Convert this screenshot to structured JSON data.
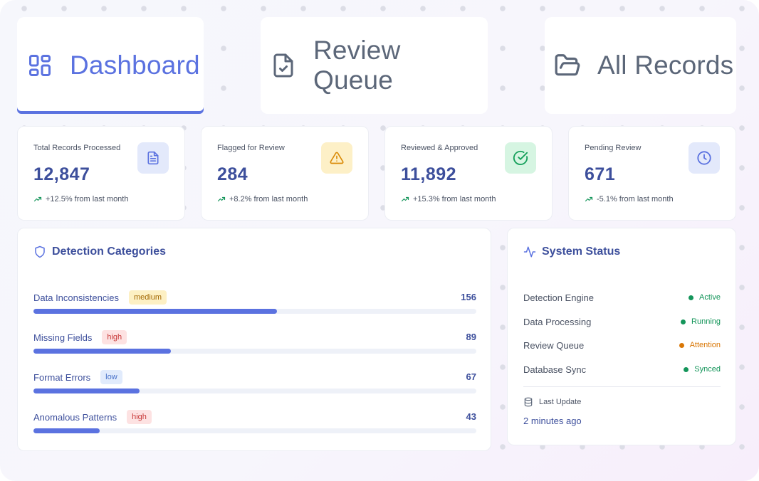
{
  "tabs": [
    {
      "label": "Dashboard",
      "icon": "grid-icon",
      "active": true
    },
    {
      "label": "Review Queue",
      "icon": "file-check-icon",
      "active": false
    },
    {
      "label": "All Records",
      "icon": "folder-open-icon",
      "active": false
    }
  ],
  "stats": [
    {
      "label": "Total Records Processed",
      "value": "12,847",
      "change": "+12.5% from last month",
      "icon": "document-icon",
      "color": "#5b72e0",
      "bg": "#e3e9fb"
    },
    {
      "label": "Flagged for Review",
      "value": "284",
      "change": "+8.2% from last month",
      "icon": "warning-icon",
      "color": "#d98a06",
      "bg": "#fdf0c7"
    },
    {
      "label": "Reviewed & Approved",
      "value": "11,892",
      "change": "+15.3% from last month",
      "icon": "check-circle-icon",
      "color": "#14a05a",
      "bg": "#d6f5e2"
    },
    {
      "label": "Pending Review",
      "value": "671",
      "change": "-5.1% from last month",
      "icon": "clock-icon",
      "color": "#5b72e0",
      "bg": "#e3e9fb"
    }
  ],
  "detection": {
    "title": "Detection Categories",
    "icon": "shield-icon",
    "categories": [
      {
        "name": "Data Inconsistencies",
        "severity": "medium",
        "count": "156",
        "fill": 0.55
      },
      {
        "name": "Missing Fields",
        "severity": "high",
        "count": "89",
        "fill": 0.31
      },
      {
        "name": "Format Errors",
        "severity": "low",
        "count": "67",
        "fill": 0.24
      },
      {
        "name": "Anomalous Patterns",
        "severity": "high",
        "count": "43",
        "fill": 0.15
      }
    ],
    "severity_colors": {
      "medium": {
        "bg": "#fdf0c4",
        "fg": "#a46a06"
      },
      "high": {
        "bg": "#fde2e2",
        "fg": "#c83a3a"
      },
      "low": {
        "bg": "#e1ebfc",
        "fg": "#4770c9"
      }
    }
  },
  "system": {
    "title": "System Status",
    "icon": "activity-icon",
    "items": [
      {
        "name": "Detection Engine",
        "status": "Active",
        "color": "#14955a"
      },
      {
        "name": "Data Processing",
        "status": "Running",
        "color": "#14955a"
      },
      {
        "name": "Review Queue",
        "status": "Attention",
        "color": "#d97706"
      },
      {
        "name": "Database Sync",
        "status": "Synced",
        "color": "#14955a"
      }
    ],
    "last_update_label": "Last Update",
    "last_update_value": "2 minutes ago",
    "last_update_icon": "database-icon"
  }
}
